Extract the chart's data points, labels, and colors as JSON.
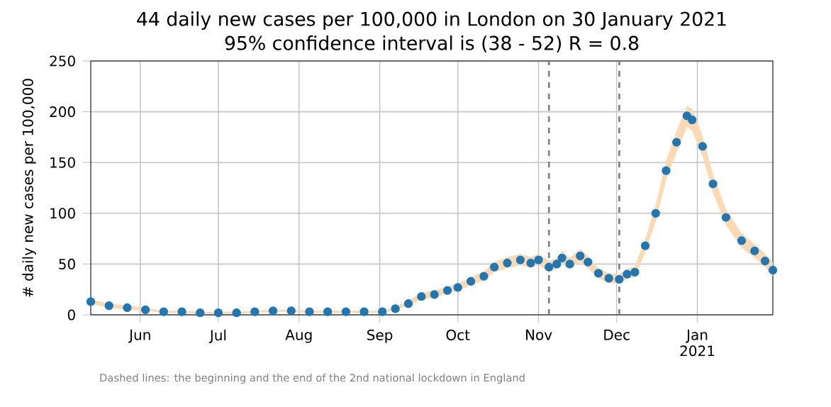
{
  "chart_data": {
    "type": "scatter",
    "title": "44 daily new cases per 100,000 in London on 30 January 2021",
    "subtitle": "95% confidence interval is (38 - 52) R = 0.8",
    "ylabel": "# daily new cases per 100,000",
    "annotations": [
      "Dashed lines: the beginning and the end of the 2nd national lockdown in England"
    ],
    "xlim": [
      "2020-05-13",
      "2021-01-30"
    ],
    "xticks": [
      {
        "value": "2020-06-01",
        "label": "Jun"
      },
      {
        "value": "2020-07-01",
        "label": "Jul"
      },
      {
        "value": "2020-08-01",
        "label": "Aug"
      },
      {
        "value": "2020-09-01",
        "label": "Sep"
      },
      {
        "value": "2020-10-01",
        "label": "Oct"
      },
      {
        "value": "2020-11-01",
        "label": "Nov"
      },
      {
        "value": "2020-12-01",
        "label": "Dec"
      },
      {
        "value": "2021-01-01",
        "label": "Jan 2021"
      }
    ],
    "ylim": [
      0,
      250
    ],
    "yticks": [
      0,
      50,
      100,
      150,
      200,
      250
    ],
    "grid": true,
    "marker": "circle",
    "ref_lines": [
      {
        "axis": "x",
        "value": "2020-11-05",
        "color": "#7f7f7f",
        "line_style": "dashed"
      },
      {
        "axis": "x",
        "value": "2020-12-02",
        "color": "#7f7f7f",
        "line_style": "dashed"
      }
    ],
    "series": [
      {
        "color": "#1f77b4",
        "x": [
          "2020-05-13",
          "2020-05-20",
          "2020-05-27",
          "2020-06-03",
          "2020-06-10",
          "2020-06-17",
          "2020-06-24",
          "2020-07-01",
          "2020-07-08",
          "2020-07-15",
          "2020-07-22",
          "2020-07-29",
          "2020-08-05",
          "2020-08-12",
          "2020-08-19",
          "2020-08-26",
          "2020-09-02",
          "2020-09-07",
          "2020-09-12",
          "2020-09-17",
          "2020-09-22",
          "2020-09-27",
          "2020-10-01",
          "2020-10-06",
          "2020-10-11",
          "2020-10-15",
          "2020-10-20",
          "2020-10-25",
          "2020-10-29",
          "2020-11-01",
          "2020-11-05",
          "2020-11-08",
          "2020-11-10",
          "2020-11-13",
          "2020-11-17",
          "2020-11-20",
          "2020-11-24",
          "2020-11-28",
          "2020-12-02",
          "2020-12-05",
          "2020-12-08",
          "2020-12-12",
          "2020-12-16",
          "2020-12-20",
          "2020-12-24",
          "2020-12-28",
          "2020-12-30",
          "2021-01-03",
          "2021-01-07",
          "2021-01-12",
          "2021-01-18",
          "2021-01-23",
          "2021-01-27",
          "2021-01-30"
        ],
        "values": [
          13,
          9,
          7,
          5,
          3,
          3,
          2,
          2,
          2,
          3,
          4,
          4,
          3,
          3,
          3,
          3,
          3,
          6,
          11,
          18,
          20,
          24,
          27,
          33,
          38,
          47,
          51,
          54,
          51,
          54,
          47,
          50,
          56,
          50,
          58,
          52,
          41,
          36,
          35,
          40,
          42,
          68,
          100,
          142,
          170,
          196,
          192,
          166,
          129,
          96,
          73,
          63,
          53,
          44
        ],
        "lower": [
          11,
          7,
          5,
          4,
          2,
          2,
          1,
          1,
          1,
          2,
          3,
          3,
          2,
          2,
          2,
          2,
          2,
          5,
          9,
          15,
          17,
          21,
          24,
          29,
          34,
          42,
          46,
          49,
          46,
          49,
          42,
          45,
          50,
          45,
          52,
          46,
          36,
          31,
          31,
          35,
          37,
          62,
          92,
          133,
          160,
          185,
          181,
          156,
          120,
          88,
          66,
          56,
          47,
          38
        ],
        "upper": [
          15,
          11,
          9,
          7,
          4,
          4,
          3,
          3,
          3,
          4,
          5,
          5,
          4,
          4,
          4,
          4,
          4,
          8,
          14,
          22,
          24,
          28,
          31,
          37,
          43,
          52,
          57,
          60,
          57,
          60,
          53,
          56,
          63,
          56,
          65,
          58,
          46,
          41,
          40,
          45,
          48,
          75,
          108,
          152,
          181,
          206,
          203,
          176,
          138,
          104,
          80,
          70,
          60,
          52
        ]
      }
    ]
  }
}
